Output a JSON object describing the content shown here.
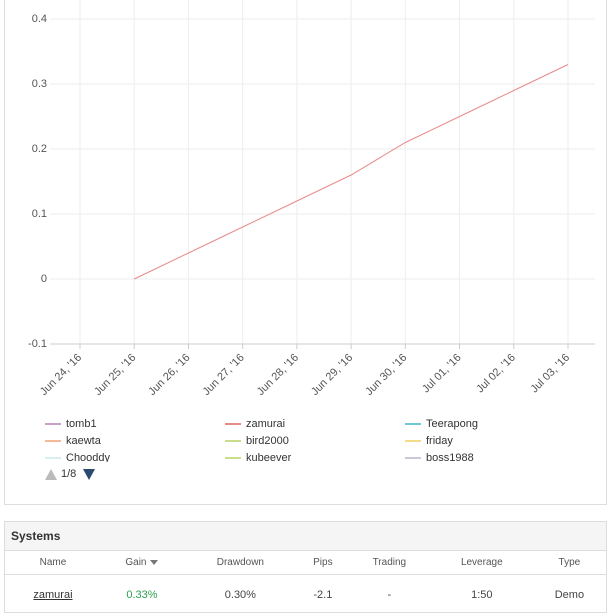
{
  "chart_data": {
    "type": "line",
    "categories": [
      "Jun 24, '16",
      "Jun 25, '16",
      "Jun 26, '16",
      "Jun 27, '16",
      "Jun 28, '16",
      "Jun 29, '16",
      "Jun 30, '16",
      "Jul 01, '16",
      "Jul 02, '16",
      "Jul 03, '16"
    ],
    "series": [
      {
        "name": "tomb1",
        "color": "#c9a0c8",
        "values": [
          null,
          null,
          null,
          null,
          null,
          null,
          null,
          null,
          null,
          null
        ]
      },
      {
        "name": "zamurai",
        "color": "#e88a8a",
        "values": [
          null,
          0,
          0.04,
          0.08,
          0.12,
          0.16,
          0.21,
          0.25,
          0.29,
          0.33
        ]
      },
      {
        "name": "Teerapong",
        "color": "#6fc6d8",
        "values": [
          null,
          null,
          null,
          null,
          null,
          null,
          null,
          null,
          null,
          null
        ]
      },
      {
        "name": "kaewta",
        "color": "#f5b99a",
        "values": [
          null,
          null,
          null,
          null,
          null,
          null,
          null,
          null,
          null,
          null
        ]
      },
      {
        "name": "bird2000",
        "color": "#c8dc8a",
        "values": [
          null,
          null,
          null,
          null,
          null,
          null,
          null,
          null,
          null,
          null
        ]
      },
      {
        "name": "friday",
        "color": "#f0dc8a",
        "values": [
          null,
          null,
          null,
          null,
          null,
          null,
          null,
          null,
          null,
          null
        ]
      },
      {
        "name": "Chooddy",
        "color": "#d8eef0",
        "values": [
          null,
          null,
          null,
          null,
          null,
          null,
          null,
          null,
          null,
          null
        ]
      },
      {
        "name": "kubeever",
        "color": "#c8e08a",
        "values": [
          null,
          null,
          null,
          null,
          null,
          null,
          null,
          null,
          null,
          null
        ]
      },
      {
        "name": "boss1988",
        "color": "#c8c8d8",
        "values": [
          null,
          null,
          null,
          null,
          null,
          null,
          null,
          null,
          null,
          null
        ]
      }
    ],
    "ylim": [
      -0.1,
      0.4
    ],
    "yticks": [
      -0.1,
      0,
      0.1,
      0.2,
      0.3,
      0.4
    ],
    "grid": true,
    "legend_page": "1/8"
  },
  "systems": {
    "title": "Systems",
    "columns": [
      "Name",
      "Gain",
      "Drawdown",
      "Pips",
      "Trading",
      "Leverage",
      "Type"
    ],
    "rows": [
      [
        "zamurai",
        "0.33%",
        "0.30%",
        "-2.1",
        "-",
        "1:50",
        "Demo"
      ]
    ]
  }
}
